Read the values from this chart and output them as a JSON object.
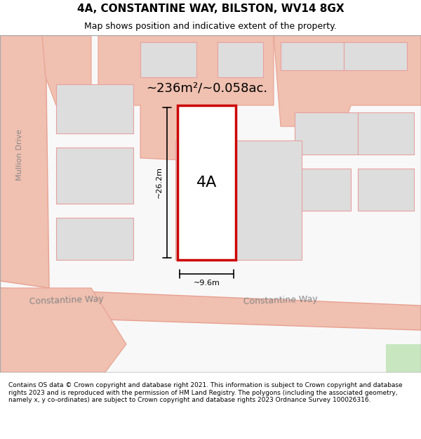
{
  "title": "4A, CONSTANTINE WAY, BILSTON, WV14 8GX",
  "subtitle": "Map shows position and indicative extent of the property.",
  "footer": "Contains OS data © Crown copyright and database right 2021. This information is subject to Crown copyright and database rights 2023 and is reproduced with the permission of HM Land Registry. The polygons (including the associated geometry, namely x, y co-ordinates) are subject to Crown copyright and database rights 2023 Ordnance Survey 100026316.",
  "area_label": "~236m²/~0.058ac.",
  "property_label": "4A",
  "dim_width": "~9.6m",
  "dim_height": "~26.2m",
  "street_label1": "Constantine Way",
  "street_label2": "Constantine Way",
  "street_label3": "Mullion Drive",
  "bg_color": "#f5f5f5",
  "map_bg": "#ffffff",
  "road_color": "#f0c0b0",
  "road_outline": "#e8a090",
  "building_color": "#dddddd",
  "building_outline": "#e8a0a0",
  "plot_fill": "#ffffff",
  "plot_outline": "#cc0000",
  "green_patch": "#c8e6c0"
}
